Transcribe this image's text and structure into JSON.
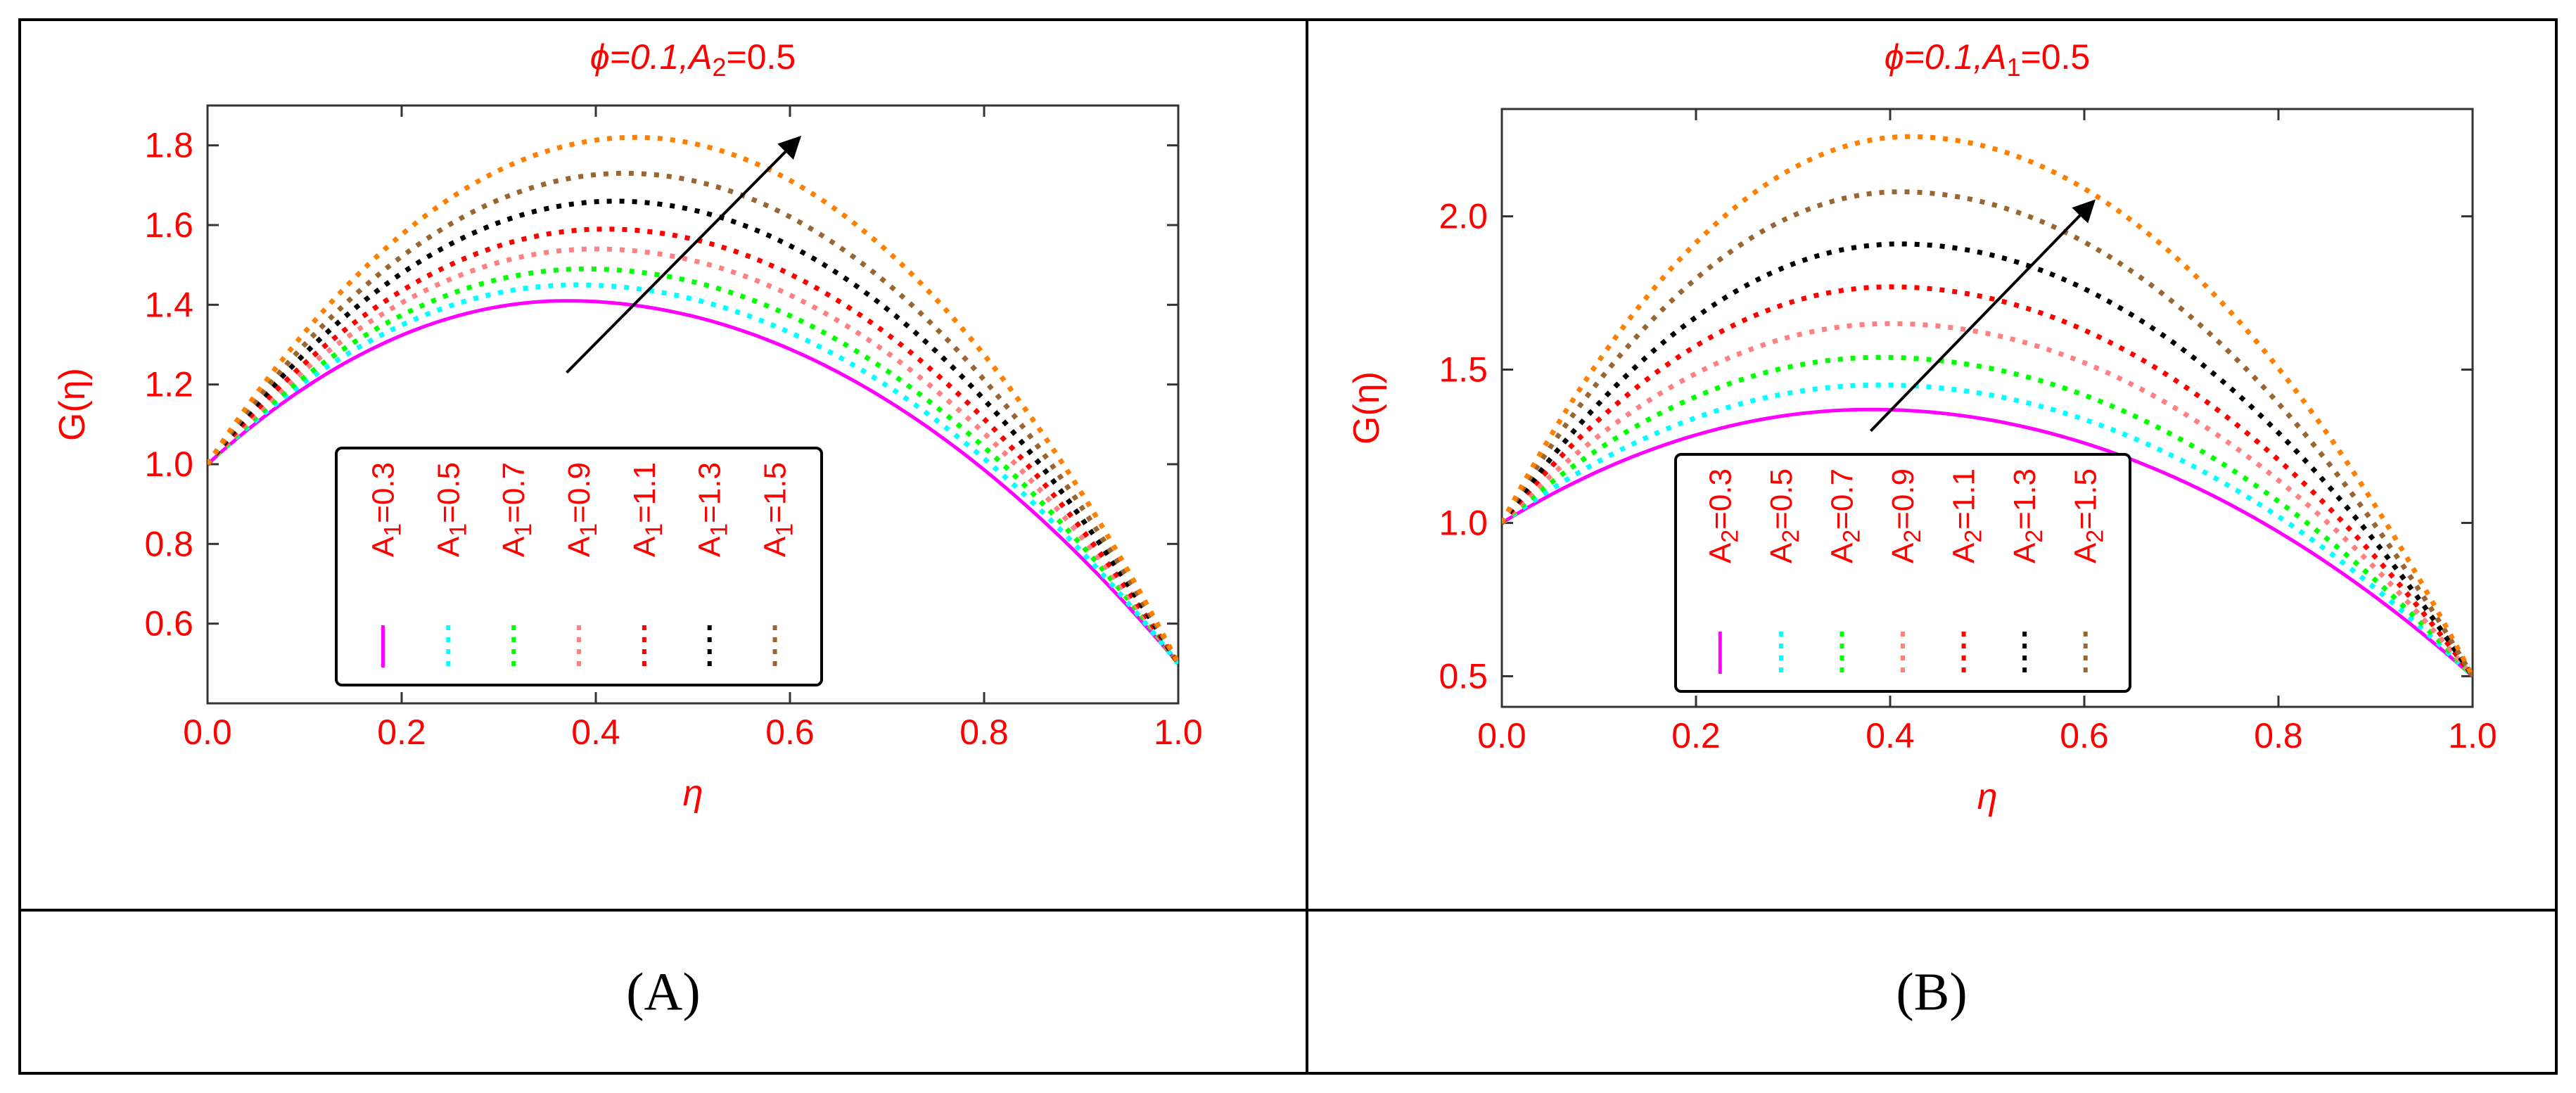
{
  "captions": [
    "(A)",
    "(B)"
  ],
  "chart_data": [
    {
      "type": "line",
      "title": "ϕ=0.1,A2=0.5",
      "xlabel": "η",
      "ylabel": "G(η)",
      "xlim": [
        0.0,
        1.0
      ],
      "ylim": [
        0.4,
        1.9
      ],
      "xticks": [
        "0.0",
        "0.2",
        "0.4",
        "0.6",
        "0.8",
        "1.0"
      ],
      "yticks": [
        "0.6",
        "0.8",
        "1.0",
        "1.2",
        "1.4",
        "1.6",
        "1.8"
      ],
      "legend_position": "bottom-center",
      "series": [
        {
          "name": "A1=0.3",
          "color": "#ff00ff",
          "style": "solid",
          "peak_x": 0.37,
          "peak_y": 1.41
        },
        {
          "name": "A1=0.5",
          "color": "#00ffff",
          "style": "dotted",
          "peak_x": 0.38,
          "peak_y": 1.45
        },
        {
          "name": "A1=0.7",
          "color": "#00ff00",
          "style": "dotted",
          "peak_x": 0.39,
          "peak_y": 1.49
        },
        {
          "name": "A1=0.9",
          "color": "#ff8080",
          "style": "dotted",
          "peak_x": 0.4,
          "peak_y": 1.54
        },
        {
          "name": "A1=1.1",
          "color": "#ff0000",
          "style": "dotted",
          "peak_x": 0.41,
          "peak_y": 1.59
        },
        {
          "name": "A1=1.3",
          "color": "#000000",
          "style": "dotted",
          "peak_x": 0.42,
          "peak_y": 1.66
        },
        {
          "name": "A1=1.5",
          "color": "#996633",
          "style": "dotted",
          "peak_x": 0.43,
          "peak_y": 1.73
        },
        {
          "name": "",
          "color": "#ff8000",
          "style": "dotted",
          "peak_x": 0.44,
          "peak_y": 1.82
        }
      ],
      "start": [
        0.0,
        1.0
      ],
      "end": [
        1.0,
        0.5
      ],
      "arrow": {
        "from": [
          0.37,
          1.23
        ],
        "to": [
          0.61,
          1.82
        ]
      }
    },
    {
      "type": "line",
      "title": "ϕ=0.1,A1=0.5",
      "xlabel": "η",
      "ylabel": "G(η)",
      "xlim": [
        0.0,
        1.0
      ],
      "ylim": [
        0.4,
        2.35
      ],
      "xticks": [
        "0.0",
        "0.2",
        "0.4",
        "0.6",
        "0.8",
        "1.0"
      ],
      "yticks": [
        "0.5",
        "1.0",
        "1.5",
        "2.0"
      ],
      "legend_position": "bottom-center",
      "series": [
        {
          "name": "A2=0.3",
          "color": "#ff00ff",
          "style": "solid",
          "peak_x": 0.38,
          "peak_y": 1.37
        },
        {
          "name": "A2=0.5",
          "color": "#00ffff",
          "style": "dotted",
          "peak_x": 0.39,
          "peak_y": 1.45
        },
        {
          "name": "A2=0.7",
          "color": "#00ff00",
          "style": "dotted",
          "peak_x": 0.39,
          "peak_y": 1.54
        },
        {
          "name": "A2=0.9",
          "color": "#ff8080",
          "style": "dotted",
          "peak_x": 0.4,
          "peak_y": 1.65
        },
        {
          "name": "A2=1.1",
          "color": "#ff0000",
          "style": "dotted",
          "peak_x": 0.4,
          "peak_y": 1.77
        },
        {
          "name": "A2=1.3",
          "color": "#000000",
          "style": "dotted",
          "peak_x": 0.41,
          "peak_y": 1.91
        },
        {
          "name": "A2=1.5",
          "color": "#996633",
          "style": "dotted",
          "peak_x": 0.41,
          "peak_y": 2.08
        },
        {
          "name": "",
          "color": "#ff8000",
          "style": "dotted",
          "peak_x": 0.42,
          "peak_y": 2.26
        }
      ],
      "start": [
        0.0,
        1.0
      ],
      "end": [
        1.0,
        0.5
      ],
      "arrow": {
        "from": [
          0.38,
          1.3
        ],
        "to": [
          0.61,
          2.05
        ]
      }
    }
  ]
}
